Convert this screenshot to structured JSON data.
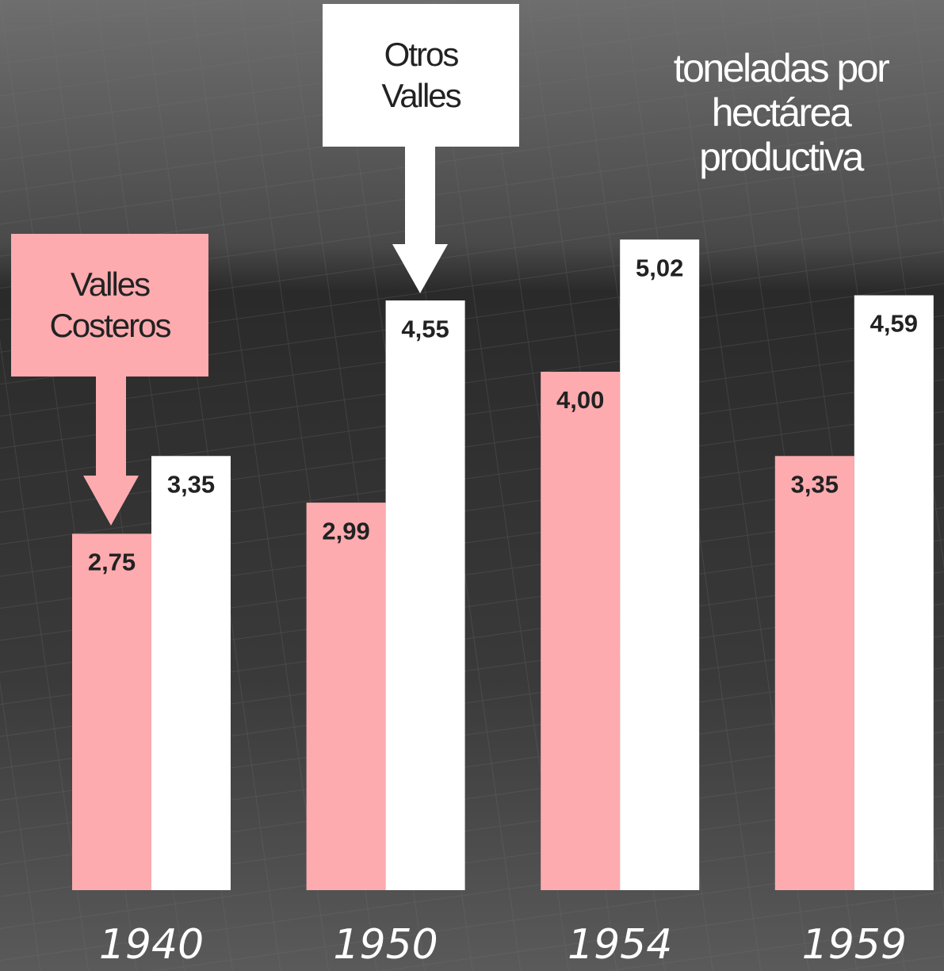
{
  "chart_data": {
    "type": "bar",
    "title": "toneladas por hectárea productiva",
    "categories": [
      "1940",
      "1950",
      "1954",
      "1959"
    ],
    "series": [
      {
        "name": "Valles Costeros",
        "color": "#fdabaf",
        "values": [
          2.75,
          2.99,
          4.0,
          3.35
        ],
        "value_labels": [
          "2,75",
          "2,99",
          "4,00",
          "3,35"
        ]
      },
      {
        "name": "Otros Valles",
        "color": "#ffffff",
        "values": [
          3.35,
          4.55,
          5.02,
          4.59
        ],
        "value_labels": [
          "3,35",
          "4,55",
          "5,02",
          "4,59"
        ]
      }
    ]
  }
}
